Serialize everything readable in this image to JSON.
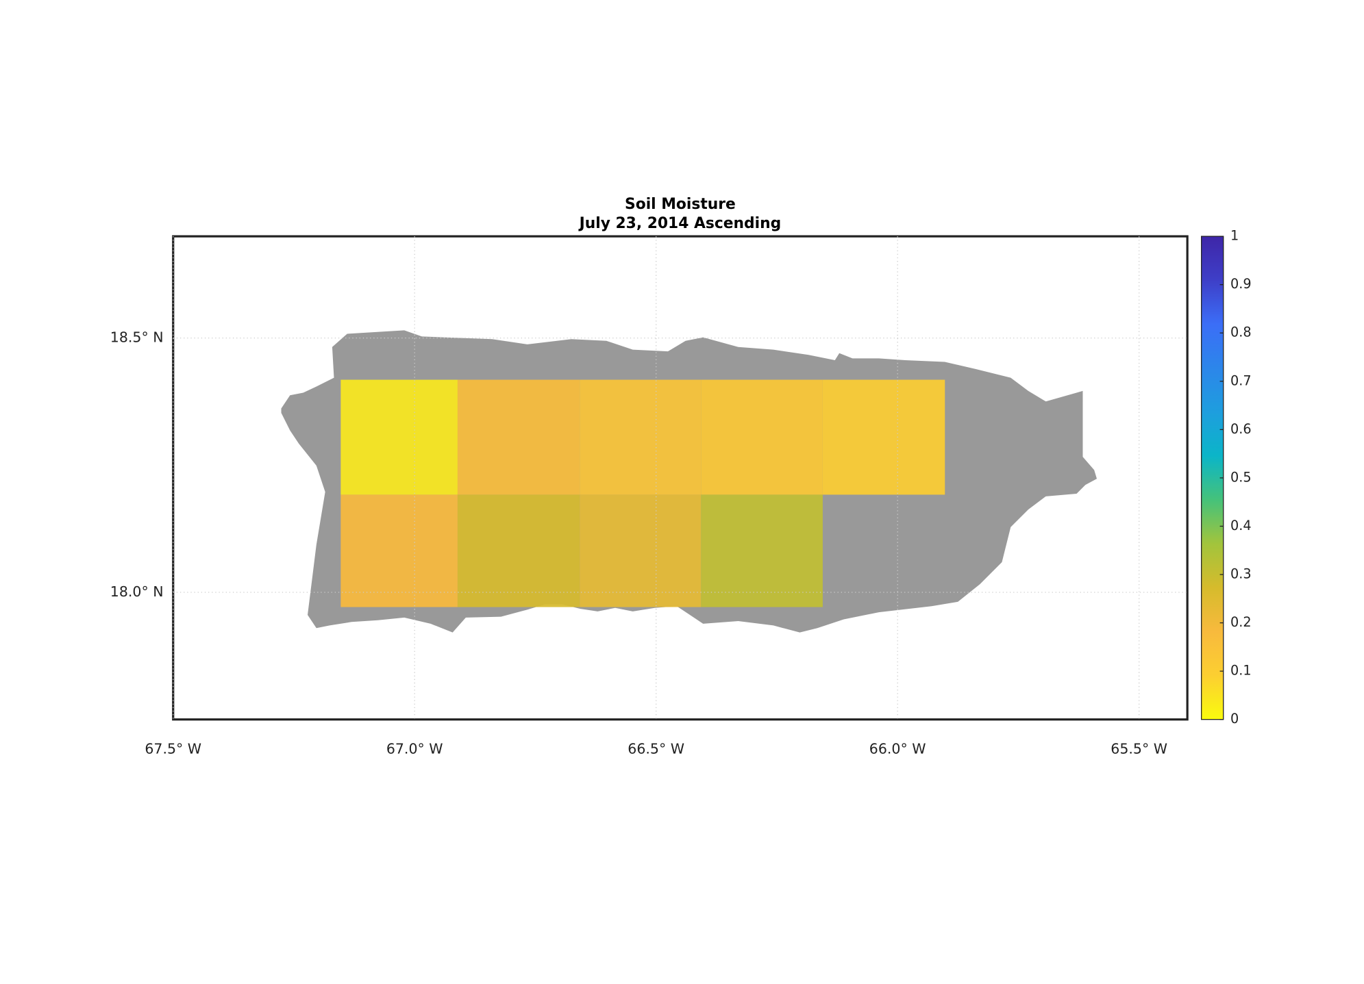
{
  "chart_data": {
    "type": "grid-map",
    "title": "Soil Moisture",
    "subtitle": "July 23, 2014 Ascending",
    "xlim": [
      -67.5,
      -65.4
    ],
    "ylim": [
      17.75,
      18.7
    ],
    "xticks": [
      {
        "value": -67.5,
        "label": "67.5° W"
      },
      {
        "value": -67.0,
        "label": "67.0° W"
      },
      {
        "value": -66.5,
        "label": "66.5° W"
      },
      {
        "value": -66.0,
        "label": "66.0° W"
      },
      {
        "value": -65.5,
        "label": "65.5° W"
      }
    ],
    "yticks": [
      {
        "value": 18.0,
        "label": "18.0° N"
      },
      {
        "value": 18.5,
        "label": "18.5° N"
      }
    ],
    "grid": true,
    "cells": [
      {
        "lon": [
          -67.153,
          -66.911
        ],
        "lat": [
          18.192,
          18.418
        ],
        "value": 0.04
      },
      {
        "lon": [
          -66.911,
          -66.658
        ],
        "lat": [
          18.192,
          18.418
        ],
        "value": 0.17
      },
      {
        "lon": [
          -66.658,
          -66.407
        ],
        "lat": [
          18.192,
          18.418
        ],
        "value": 0.14
      },
      {
        "lon": [
          -66.407,
          -66.155
        ],
        "lat": [
          18.192,
          18.418
        ],
        "value": 0.12
      },
      {
        "lon": [
          -66.155,
          -65.902
        ],
        "lat": [
          18.192,
          18.418
        ],
        "value": 0.1
      },
      {
        "lon": [
          -67.153,
          -66.911
        ],
        "lat": [
          17.971,
          18.192
        ],
        "value": 0.18
      },
      {
        "lon": [
          -66.911,
          -66.658
        ],
        "lat": [
          17.971,
          18.192
        ],
        "value": 0.27
      },
      {
        "lon": [
          -66.658,
          -66.407
        ],
        "lat": [
          17.971,
          18.192
        ],
        "value": 0.23
      },
      {
        "lon": [
          -66.407,
          -66.155
        ],
        "lat": [
          17.971,
          18.192
        ],
        "value": 0.31
      }
    ],
    "colorbar": {
      "lim": [
        0,
        1
      ],
      "ticks": [
        0,
        0.1,
        0.2,
        0.3,
        0.4,
        0.5,
        0.6,
        0.7,
        0.8,
        0.9,
        1
      ],
      "colormap": [
        "#f9fb0e",
        "#fccf31",
        "#f8ba3d",
        "#d6bb2c",
        "#a2c43c",
        "#45c27a",
        "#0bb5c8",
        "#1e9ede",
        "#2c86ea",
        "#3b6ef7",
        "#3e3fc8",
        "#3e26a8"
      ]
    }
  }
}
